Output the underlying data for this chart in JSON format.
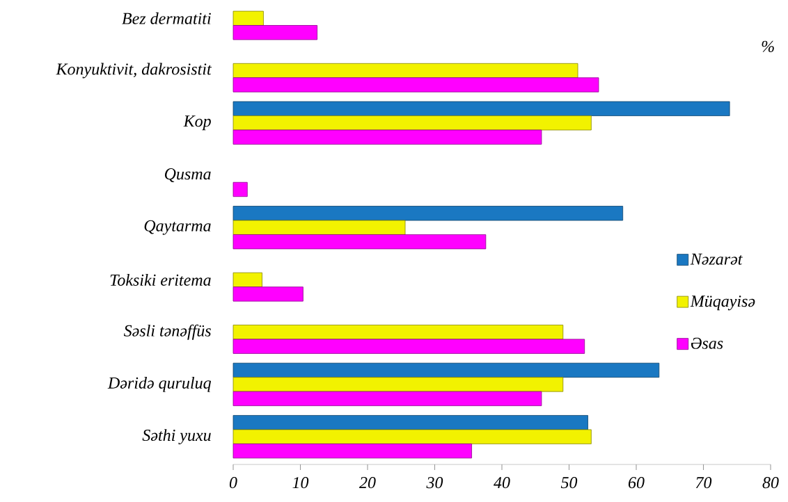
{
  "chart_data": {
    "type": "bar",
    "orientation": "horizontal",
    "categories": [
      "Bez dermatiti",
      "Konyuktivit, dakrosistit",
      "Kop",
      "Qusma",
      "Qaytarma",
      "Toksiki eritema",
      "Səsli tənəffüs",
      "Dəridə quruluq",
      "Səthi yuxu"
    ],
    "series": [
      {
        "name": "Nəzarət",
        "color": "#1a78c2",
        "values": [
          null,
          null,
          73.9,
          null,
          58.0,
          null,
          null,
          63.4,
          52.8
        ]
      },
      {
        "name": "Müqayisə",
        "color": "#f2f200",
        "values": [
          4.5,
          51.3,
          53.3,
          null,
          25.6,
          4.3,
          49.1,
          49.1,
          53.3
        ]
      },
      {
        "name": "Əsas",
        "color": "#ff00ff",
        "values": [
          12.5,
          54.4,
          45.9,
          2.1,
          37.6,
          10.4,
          52.3,
          45.9,
          35.5
        ]
      }
    ],
    "xlim": [
      0,
      80
    ],
    "xticks": [
      0,
      10,
      20,
      30,
      40,
      50,
      60,
      70,
      80
    ],
    "legend": "right",
    "annotations": [
      "%"
    ]
  }
}
